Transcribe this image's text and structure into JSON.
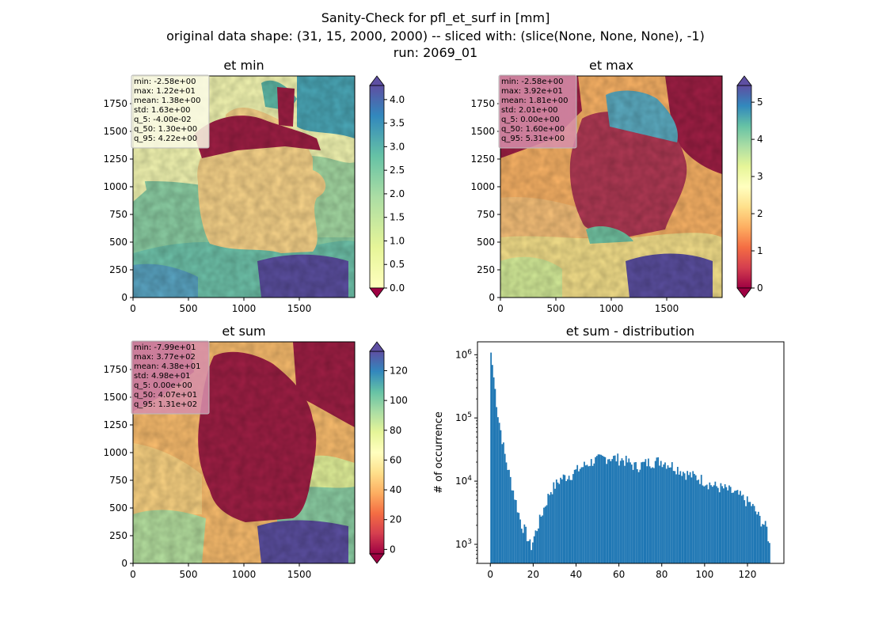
{
  "figure": {
    "title_lines": [
      "Sanity-Check for pfl_et_surf in [mm]",
      "original data shape: (31, 15, 2000, 2000) -- sliced with: (slice(None, None, None), -1)",
      "run: 2069_01"
    ]
  },
  "chart_data": [
    {
      "type": "heatmap",
      "title": "et min",
      "xlim": [
        0,
        2000
      ],
      "ylim": [
        0,
        2000
      ],
      "x_ticks": [
        "0",
        "500",
        "1000",
        "1500"
      ],
      "y_ticks": [
        "0",
        "250",
        "500",
        "750",
        "1000",
        "1250",
        "1500",
        "1750"
      ],
      "colormap": "Spectral",
      "colorbar": {
        "min": 0.0,
        "max": 4.3,
        "ticks": [
          "0.0",
          "0.5",
          "1.0",
          "1.5",
          "2.0",
          "2.5",
          "3.0",
          "3.5",
          "4.0"
        ],
        "extend": "both"
      },
      "stats": [
        "min: -2.58e+00",
        "max: 1.22e+01",
        "mean: 1.38e+00",
        "std: 1.63e+00",
        "q_5: -4.00e-02",
        "q_50: 1.30e+00",
        "q_95: 4.22e+00"
      ],
      "stats_box_color": "#fbfbe6"
    },
    {
      "type": "heatmap",
      "title": "et max",
      "xlim": [
        0,
        2000
      ],
      "ylim": [
        0,
        2000
      ],
      "x_ticks": [
        "0",
        "500",
        "1000",
        "1500"
      ],
      "y_ticks": [
        "0",
        "250",
        "500",
        "750",
        "1000",
        "1250",
        "1500",
        "1750"
      ],
      "colormap": "Spectral",
      "colorbar": {
        "min": 0.0,
        "max": 5.45,
        "ticks": [
          "0",
          "1",
          "2",
          "3",
          "4",
          "5"
        ],
        "extend": "both"
      },
      "stats": [
        "min: -2.58e+00",
        "max: 3.92e+01",
        "mean: 1.81e+00",
        "std: 2.01e+00",
        "q_5: 0.00e+00",
        "q_50: 1.60e+00",
        "q_95: 5.31e+00"
      ],
      "stats_box_color": "#d78fab"
    },
    {
      "type": "heatmap",
      "title": "et sum",
      "xlim": [
        0,
        2000
      ],
      "ylim": [
        0,
        2000
      ],
      "x_ticks": [
        "0",
        "500",
        "1000",
        "1500"
      ],
      "y_ticks": [
        "0",
        "250",
        "500",
        "750",
        "1000",
        "1250",
        "1500",
        "1750"
      ],
      "colormap": "Spectral",
      "colorbar": {
        "min": -3,
        "max": 133,
        "ticks": [
          "0",
          "20",
          "40",
          "60",
          "80",
          "100",
          "120"
        ],
        "extend": "both"
      },
      "stats": [
        "min: -7.99e+01",
        "max: 3.77e+02",
        "mean: 4.38e+01",
        "std: 4.98e+01",
        "q_5: 0.00e+00",
        "q_50: 4.07e+01",
        "q_95: 1.31e+02"
      ],
      "stats_box_color": "#d78fab"
    },
    {
      "type": "bar",
      "title": "et sum - distribution",
      "ylabel": "# of occurrence",
      "yscale": "log",
      "xlim": [
        -6,
        137
      ],
      "ylim": [
        500,
        1600000
      ],
      "x_ticks": [
        "0",
        "20",
        "40",
        "60",
        "80",
        "100",
        "120"
      ],
      "y_ticks": [
        "10^3",
        "10^4",
        "10^5",
        "10^6"
      ],
      "bar_color": "#1f77b4",
      "bin_width": 0.65,
      "x": [
        0.3,
        3.5,
        7,
        10,
        12.5,
        14.5,
        16.5,
        17.7,
        19,
        21,
        24,
        28,
        33,
        38,
        43,
        48,
        55,
        62,
        68,
        74,
        80,
        86,
        92,
        98,
        104,
        110,
        116,
        122,
        126,
        129,
        130.5
      ],
      "values": [
        1100000,
        120000,
        24000,
        9000,
        4000,
        2100,
        1600,
        1200,
        900,
        1500,
        3000,
        7000,
        11000,
        13000,
        17000,
        21000,
        24000,
        22000,
        17000,
        20000,
        21000,
        17000,
        13000,
        11000,
        8500,
        7500,
        6000,
        4200,
        2500,
        1800,
        900
      ]
    }
  ]
}
